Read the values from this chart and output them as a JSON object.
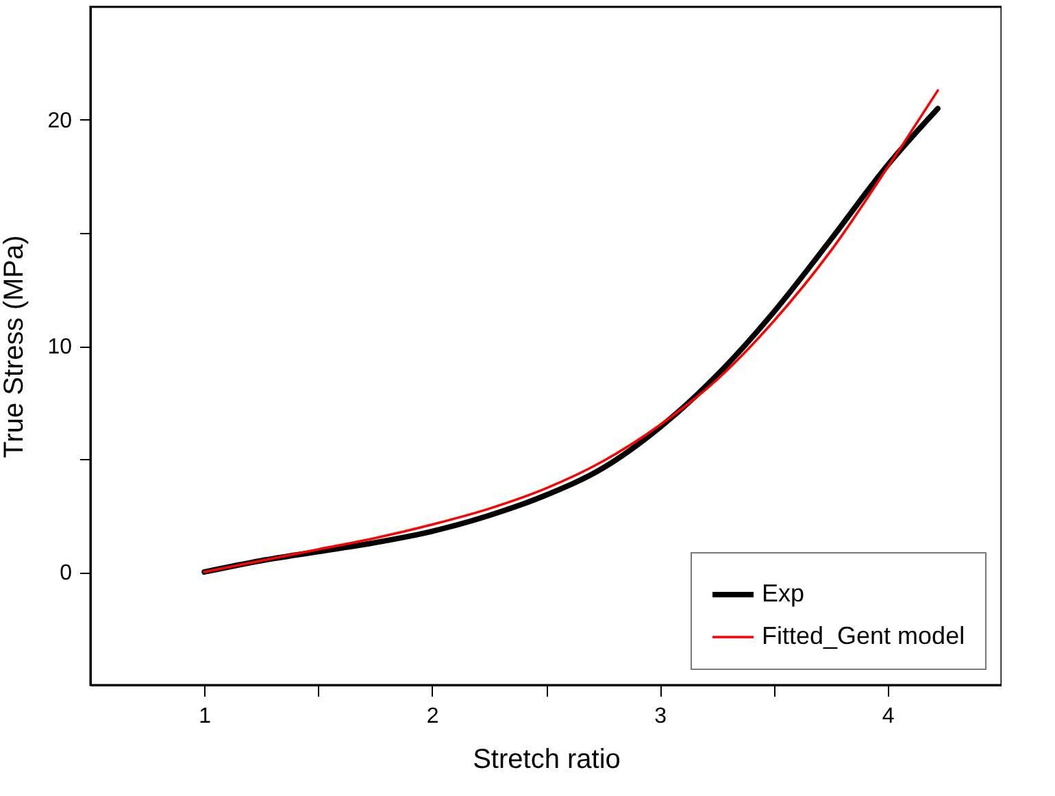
{
  "chart_data": {
    "type": "line",
    "xlabel": "Stretch ratio",
    "ylabel": "True Stress (MPa)",
    "xlim": [
      0.5,
      4.5
    ],
    "ylim": [
      -5,
      25
    ],
    "xticks": [
      1,
      {
        "value": 1.5,
        "label": null
      },
      2,
      {
        "value": 2.5,
        "label": null
      },
      3,
      {
        "value": 3.5,
        "label": null
      },
      4
    ],
    "yticks": [
      0,
      {
        "value": 5,
        "label": null
      },
      10,
      {
        "value": 15,
        "label": null
      },
      20
    ],
    "x": [
      1,
      1.25,
      1.5,
      1.75,
      2,
      2.25,
      2.5,
      2.75,
      3,
      3.25,
      3.5,
      3.75,
      4,
      4.22
    ],
    "series": [
      {
        "name": "Exp",
        "color": "#000000",
        "values": [
          0,
          0.5,
          0.9,
          1.3,
          1.8,
          2.5,
          3.4,
          4.6,
          6.4,
          8.7,
          11.5,
          14.7,
          18.0,
          20.5
        ]
      },
      {
        "name": "Fitted_Gent model",
        "color": "#ff0000",
        "values": [
          0,
          0.5,
          1.0,
          1.5,
          2.1,
          2.8,
          3.7,
          4.9,
          6.5,
          8.5,
          11.1,
          14.2,
          17.9,
          21.3
        ]
      }
    ],
    "legend": "bottom right",
    "grid": false
  }
}
